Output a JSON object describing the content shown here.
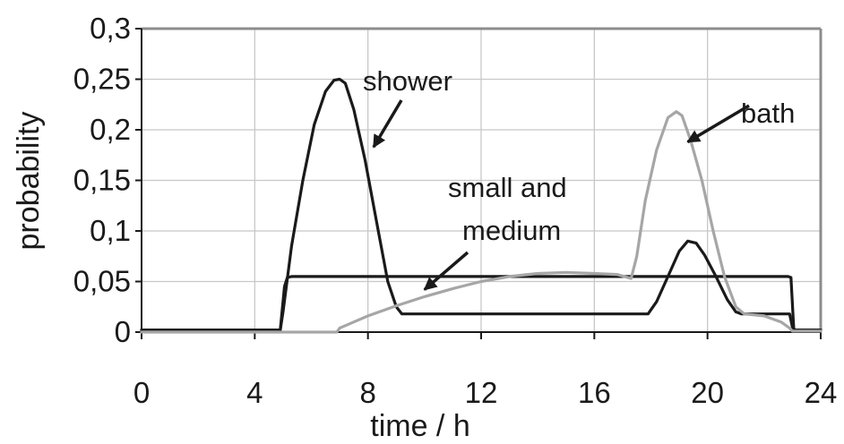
{
  "chart_data": {
    "type": "line",
    "title": "",
    "xlabel": "time / h",
    "ylabel": "probability",
    "xlim": [
      0,
      24
    ],
    "ylim": [
      0,
      0.3
    ],
    "x_ticks": [
      0,
      4,
      8,
      12,
      16,
      20,
      24
    ],
    "x_tick_labels": [
      "0",
      "4",
      "8",
      "12",
      "16",
      "20",
      "24"
    ],
    "y_ticks": [
      0,
      0.05,
      0.1,
      0.15,
      0.2,
      0.25,
      0.3
    ],
    "y_tick_labels": [
      "0",
      "0,05",
      "0,1",
      "0,15",
      "0,2",
      "0,25",
      "0,3"
    ],
    "grid": true,
    "legend": "none",
    "series": [
      {
        "name": "shower",
        "color": "#1a1a1a",
        "x": [
          0,
          4.9,
          5.0,
          5.3,
          5.7,
          6.1,
          6.5,
          6.8,
          7.0,
          7.2,
          7.5,
          7.9,
          8.3,
          8.7,
          9.0,
          9.2,
          17.9,
          18.2,
          18.6,
          19.0,
          19.3,
          19.6,
          19.9,
          20.3,
          20.7,
          21.0,
          21.2,
          22.9,
          23.0,
          23.1,
          24
        ],
        "y": [
          0.002,
          0.002,
          0.02,
          0.085,
          0.15,
          0.205,
          0.238,
          0.249,
          0.25,
          0.246,
          0.22,
          0.17,
          0.11,
          0.05,
          0.025,
          0.018,
          0.018,
          0.03,
          0.055,
          0.08,
          0.09,
          0.088,
          0.076,
          0.055,
          0.032,
          0.02,
          0.018,
          0.018,
          0.005,
          0.002,
          0.002
        ]
      },
      {
        "name": "small and medium",
        "color": "#1a1a1a",
        "x": [
          0,
          4.9,
          5.05,
          5.15,
          5.3,
          22.85,
          22.95,
          23.05,
          24
        ],
        "y": [
          0.002,
          0.002,
          0.045,
          0.054,
          0.055,
          0.055,
          0.054,
          0.002,
          0.002
        ]
      },
      {
        "name": "bath",
        "color": "#a6a6a6",
        "x": [
          0,
          6.9,
          7.0,
          7.5,
          8.0,
          9.0,
          10.0,
          11.0,
          12.0,
          13.0,
          14.0,
          15.0,
          16.0,
          16.8,
          17.3,
          17.5,
          17.8,
          18.2,
          18.6,
          18.9,
          19.1,
          19.4,
          19.8,
          20.2,
          20.6,
          21.0,
          21.3,
          22.0,
          22.6,
          22.9,
          23.0,
          24
        ],
        "y": [
          0.0,
          0.0,
          0.004,
          0.01,
          0.016,
          0.026,
          0.035,
          0.043,
          0.05,
          0.055,
          0.058,
          0.059,
          0.058,
          0.057,
          0.053,
          0.075,
          0.13,
          0.18,
          0.212,
          0.218,
          0.214,
          0.19,
          0.15,
          0.1,
          0.055,
          0.025,
          0.018,
          0.016,
          0.01,
          0.004,
          0.001,
          0.001
        ]
      }
    ],
    "annotations": [
      {
        "text": "shower",
        "arrow_to": [
          8.2,
          0.183
        ]
      },
      {
        "text": "bath",
        "arrow_to": [
          19.3,
          0.188
        ]
      },
      {
        "text": "small and",
        "arrow_to": [
          10.0,
          0.042
        ]
      },
      {
        "text": "medium",
        "arrow_to": null
      }
    ]
  }
}
